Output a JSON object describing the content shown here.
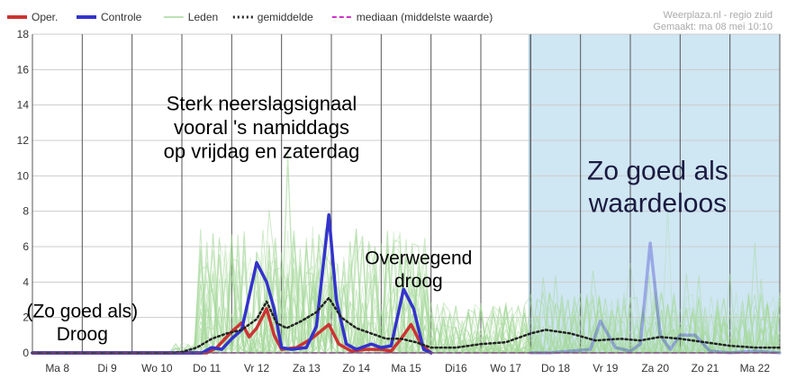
{
  "chart_data": {
    "type": "line",
    "ylim": [
      0,
      18
    ],
    "yticks": [
      0,
      2,
      4,
      6,
      8,
      10,
      12,
      14,
      16,
      18
    ],
    "x_range": [
      0,
      15
    ],
    "day_labels": [
      "Ma 8",
      "Di 9",
      "Wo 10",
      "Do 11",
      "Vr 12",
      "Za 13",
      "Zo 14",
      "Ma 15",
      "Di16",
      "Wo 17",
      "Do 18",
      "Vr 19",
      "Za 20",
      "Zo 21",
      "Ma 22"
    ],
    "shaded_region_start": 9.97,
    "series": [
      {
        "name": "Oper.",
        "color": "#cc3333",
        "points": [
          [
            0,
            0
          ],
          [
            3.5,
            0
          ],
          [
            3.7,
            0.3
          ],
          [
            4.0,
            1.2
          ],
          [
            4.2,
            1.7
          ],
          [
            4.35,
            0.9
          ],
          [
            4.5,
            1.4
          ],
          [
            4.7,
            2.5
          ],
          [
            4.85,
            1.0
          ],
          [
            5.0,
            0.2
          ],
          [
            5.3,
            0.3
          ],
          [
            5.6,
            0.8
          ],
          [
            5.95,
            1.6
          ],
          [
            6.15,
            0.5
          ],
          [
            6.4,
            0.1
          ],
          [
            6.7,
            0.2
          ],
          [
            7.0,
            0.2
          ],
          [
            7.2,
            0.1
          ],
          [
            7.4,
            0.8
          ],
          [
            7.6,
            1.6
          ],
          [
            7.8,
            0.5
          ],
          [
            8.0,
            0
          ]
        ]
      },
      {
        "name": "Controle",
        "color": "#3333cc",
        "points": [
          [
            0,
            0
          ],
          [
            3.4,
            0
          ],
          [
            3.6,
            0.3
          ],
          [
            3.8,
            0.2
          ],
          [
            4.0,
            0.8
          ],
          [
            4.2,
            1.3
          ],
          [
            4.35,
            3.2
          ],
          [
            4.5,
            5.1
          ],
          [
            4.7,
            4.0
          ],
          [
            4.85,
            2.5
          ],
          [
            5.0,
            0.3
          ],
          [
            5.2,
            0.2
          ],
          [
            5.5,
            0.3
          ],
          [
            5.7,
            1.5
          ],
          [
            5.95,
            7.8
          ],
          [
            6.1,
            3.0
          ],
          [
            6.3,
            0.5
          ],
          [
            6.5,
            0.2
          ],
          [
            6.8,
            0.5
          ],
          [
            7.0,
            0.3
          ],
          [
            7.2,
            0.4
          ],
          [
            7.45,
            3.6
          ],
          [
            7.65,
            2.5
          ],
          [
            7.85,
            0.2
          ],
          [
            8.0,
            0
          ]
        ]
      },
      {
        "name": "Controle",
        "color": "#3333cc",
        "faded": true,
        "points": [
          [
            10.0,
            0
          ],
          [
            10.4,
            0
          ],
          [
            10.8,
            0.1
          ],
          [
            11.2,
            0.2
          ],
          [
            11.4,
            1.8
          ],
          [
            11.7,
            0.3
          ],
          [
            12.0,
            0.1
          ],
          [
            12.2,
            0.5
          ],
          [
            12.4,
            6.2
          ],
          [
            12.6,
            1.0
          ],
          [
            12.8,
            0.2
          ],
          [
            13.0,
            1.0
          ],
          [
            13.3,
            1.0
          ],
          [
            13.6,
            0.1
          ],
          [
            14.0,
            0
          ],
          [
            14.5,
            0.1
          ],
          [
            15.0,
            0
          ]
        ]
      },
      {
        "name": "gemiddelde",
        "color": "#222222",
        "points": [
          [
            0,
            0
          ],
          [
            2.8,
            0
          ],
          [
            3.0,
            0.05
          ],
          [
            3.3,
            0.3
          ],
          [
            3.6,
            0.8
          ],
          [
            3.9,
            1.1
          ],
          [
            4.2,
            1.3
          ],
          [
            4.5,
            1.9
          ],
          [
            4.7,
            2.9
          ],
          [
            4.9,
            1.7
          ],
          [
            5.1,
            1.4
          ],
          [
            5.4,
            1.8
          ],
          [
            5.7,
            2.3
          ],
          [
            5.95,
            3.1
          ],
          [
            6.2,
            2.0
          ],
          [
            6.5,
            1.4
          ],
          [
            6.8,
            1.1
          ],
          [
            7.1,
            0.8
          ],
          [
            7.4,
            0.8
          ],
          [
            7.7,
            0.6
          ],
          [
            8.0,
            0.3
          ],
          [
            8.5,
            0.3
          ],
          [
            9.0,
            0.5
          ],
          [
            9.5,
            0.6
          ],
          [
            10.0,
            1.1
          ],
          [
            10.3,
            1.3
          ],
          [
            10.8,
            1.1
          ],
          [
            11.3,
            0.7
          ],
          [
            11.8,
            0.8
          ],
          [
            12.2,
            0.7
          ],
          [
            12.6,
            0.9
          ],
          [
            13.0,
            0.8
          ],
          [
            13.5,
            0.6
          ],
          [
            14.0,
            0.4
          ],
          [
            14.5,
            0.3
          ],
          [
            15.0,
            0.3
          ]
        ]
      },
      {
        "name": "mediaan (middelste waarde)",
        "color": "#cc33cc",
        "points": [
          [
            0,
            0
          ],
          [
            15,
            0
          ]
        ]
      }
    ],
    "legend_entries": [
      {
        "label": "Oper.",
        "color": "#cc3333",
        "style": "solid-thick"
      },
      {
        "label": "Controle",
        "color": "#3333cc",
        "style": "solid-thick"
      },
      {
        "label": "Leden",
        "color": "#a6d99a",
        "style": "solid-thin"
      },
      {
        "label": "gemiddelde",
        "color": "#222222",
        "style": "dotted"
      },
      {
        "label": "mediaan (middelste waarde)",
        "color": "#cc33cc",
        "style": "dashed"
      }
    ],
    "credit_line1": "Weerplaza.nl - regio zuid",
    "credit_line2": "Gemaakt: ma 08 mei 10:10",
    "annotations": [
      {
        "lines": [
          "Sterk neerslagsignaal",
          "vooral 's namiddags",
          "op vrijdag en zaterdag"
        ],
        "x": 4.6,
        "y": 13.7,
        "size": 22,
        "tone": "dark"
      },
      {
        "lines": [
          "Overwegend",
          "droog"
        ],
        "x": 7.75,
        "y": 5.0,
        "size": 21,
        "tone": "dark"
      },
      {
        "lines": [
          "(Zo goed als)",
          "Droog"
        ],
        "x": 1.0,
        "y": 2.0,
        "size": 21,
        "tone": "dark"
      },
      {
        "lines": [
          "Zo goed als",
          "waardeloos"
        ],
        "x": 12.55,
        "y": 9.8,
        "size": 30,
        "tone": "blue"
      }
    ]
  }
}
